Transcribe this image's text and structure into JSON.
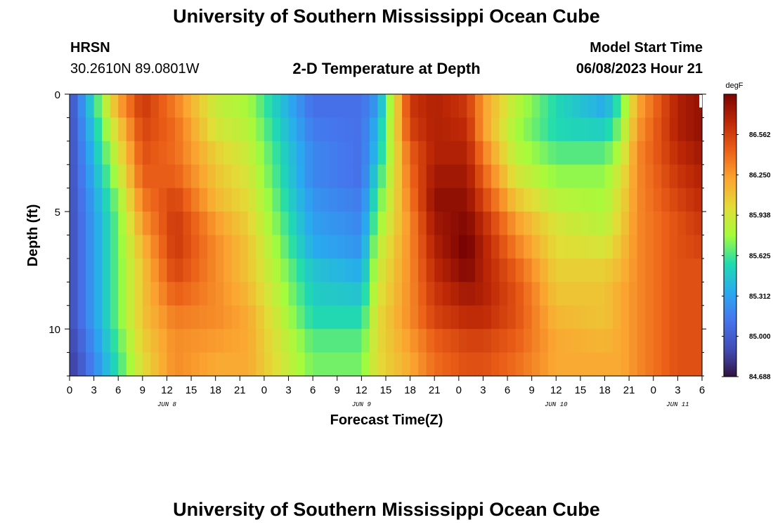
{
  "page": {
    "title": "University of Southern Mississippi Ocean Cube",
    "footer_title": "University of Southern Mississippi Ocean Cube",
    "station": "HRSN",
    "coordinates": "30.2610N  89.0801W",
    "subtitle": "2-D Temperature at Depth",
    "model_start_label": "Model Start Time",
    "model_start_value": "06/08/2023 Hour 21"
  },
  "chart_data": {
    "type": "heatmap",
    "title": "2-D Temperature at Depth",
    "xlabel": "Forecast Time(Z)",
    "ylabel": "Depth (ft)",
    "colorbar_unit": "degF",
    "colorbar_ticks": [
      84.688,
      85.0,
      85.312,
      85.625,
      85.938,
      86.25,
      86.562
    ],
    "colorbar_range": [
      84.688,
      86.875
    ],
    "colorbar_tick_labels": [
      "84.688",
      "85.000",
      "85.312",
      "85.625",
      "85.938",
      "86.250",
      "86.562"
    ],
    "x_start_hour": 0,
    "x_end_hour": 78,
    "x_tick_hours": [
      0,
      3,
      6,
      9,
      12,
      15,
      18,
      21,
      24,
      27,
      30,
      33,
      36,
      39,
      42,
      45,
      48,
      51,
      54,
      57,
      60,
      63,
      66,
      69,
      72,
      75,
      78
    ],
    "x_tick_labels": [
      "0",
      "3",
      "6",
      "9",
      "12",
      "15",
      "18",
      "21",
      "0",
      "3",
      "6",
      "9",
      "12",
      "15",
      "18",
      "21",
      "0",
      "3",
      "6",
      "9",
      "12",
      "15",
      "18",
      "21",
      "0",
      "3",
      "6"
    ],
    "date_labels": [
      {
        "label": "JUN 8",
        "hour": 12
      },
      {
        "label": "JUN 9",
        "hour": 36
      },
      {
        "label": "JUN 10",
        "hour": 60
      },
      {
        "label": "JUN 11",
        "hour": 75
      }
    ],
    "y_range": [
      0,
      12
    ],
    "y_tick_values": [
      0,
      5,
      10
    ],
    "y_tick_labels": [
      "0",
      "5",
      "10"
    ],
    "depth_levels_ft": [
      0,
      1,
      2,
      3,
      4,
      5,
      6,
      7,
      8,
      9,
      10,
      11
    ],
    "time_hours": [
      0,
      6,
      9,
      13,
      18,
      22,
      30,
      36,
      38,
      42,
      45,
      49,
      51,
      55,
      60,
      66,
      68,
      70,
      75,
      78
    ],
    "temperature_degF": [
      [
        84.9,
        86.3,
        86.6,
        86.3,
        85.9,
        85.8,
        85.1,
        85.1,
        85.2,
        86.6,
        86.7,
        86.6,
        86.3,
        85.9,
        85.6,
        85.3,
        85.6,
        86.2,
        86.7,
        86.8
      ],
      [
        84.9,
        86.1,
        86.6,
        86.4,
        85.9,
        85.8,
        85.1,
        85.1,
        85.4,
        86.6,
        86.7,
        86.6,
        86.2,
        85.8,
        85.5,
        85.4,
        85.7,
        86.2,
        86.7,
        86.8
      ],
      [
        84.9,
        86.0,
        86.5,
        86.4,
        86.0,
        85.9,
        85.2,
        85.1,
        85.4,
        86.5,
        86.7,
        86.7,
        86.3,
        85.8,
        85.6,
        85.6,
        85.8,
        86.3,
        86.7,
        86.8
      ],
      [
        84.9,
        85.9,
        86.5,
        86.4,
        86.1,
        85.9,
        85.2,
        85.1,
        85.5,
        86.4,
        86.7,
        86.7,
        86.4,
        85.9,
        85.7,
        85.7,
        85.9,
        86.3,
        86.6,
        86.7
      ],
      [
        84.9,
        85.8,
        86.4,
        86.5,
        86.1,
        86.0,
        85.2,
        85.1,
        85.6,
        86.4,
        86.8,
        86.8,
        86.5,
        86.0,
        85.8,
        85.8,
        86.0,
        86.3,
        86.6,
        86.7
      ],
      [
        84.9,
        85.7,
        86.3,
        86.6,
        86.2,
        86.0,
        85.3,
        85.2,
        85.7,
        86.3,
        86.8,
        86.8,
        86.6,
        86.2,
        85.9,
        85.8,
        86.0,
        86.3,
        86.5,
        86.6
      ],
      [
        84.9,
        85.7,
        86.2,
        86.6,
        86.3,
        86.1,
        85.3,
        85.2,
        85.8,
        86.3,
        86.7,
        86.9,
        86.7,
        86.3,
        86.0,
        85.9,
        86.1,
        86.3,
        86.5,
        86.6
      ],
      [
        84.9,
        85.7,
        86.1,
        86.6,
        86.3,
        86.1,
        85.4,
        85.3,
        85.9,
        86.3,
        86.7,
        86.9,
        86.7,
        86.4,
        86.0,
        86.0,
        86.1,
        86.3,
        86.5,
        86.5
      ],
      [
        84.9,
        85.7,
        86.1,
        86.5,
        86.3,
        86.1,
        85.5,
        85.4,
        85.9,
        86.3,
        86.6,
        86.8,
        86.7,
        86.5,
        86.1,
        86.1,
        86.2,
        86.3,
        86.5,
        86.5
      ],
      [
        84.9,
        85.7,
        86.1,
        86.4,
        86.3,
        86.2,
        85.5,
        85.5,
        86.0,
        86.3,
        86.6,
        86.7,
        86.7,
        86.5,
        86.1,
        86.1,
        86.2,
        86.3,
        86.5,
        86.5
      ],
      [
        84.9,
        85.7,
        86.1,
        86.3,
        86.3,
        86.2,
        85.6,
        85.6,
        86.0,
        86.3,
        86.5,
        86.6,
        86.6,
        86.5,
        86.2,
        86.1,
        86.2,
        86.3,
        86.5,
        86.5
      ],
      [
        84.8,
        85.6,
        86.0,
        86.3,
        86.2,
        86.2,
        85.7,
        85.7,
        86.0,
        86.2,
        86.4,
        86.5,
        86.5,
        86.4,
        86.2,
        86.2,
        86.2,
        86.3,
        86.5,
        86.5
      ]
    ]
  }
}
